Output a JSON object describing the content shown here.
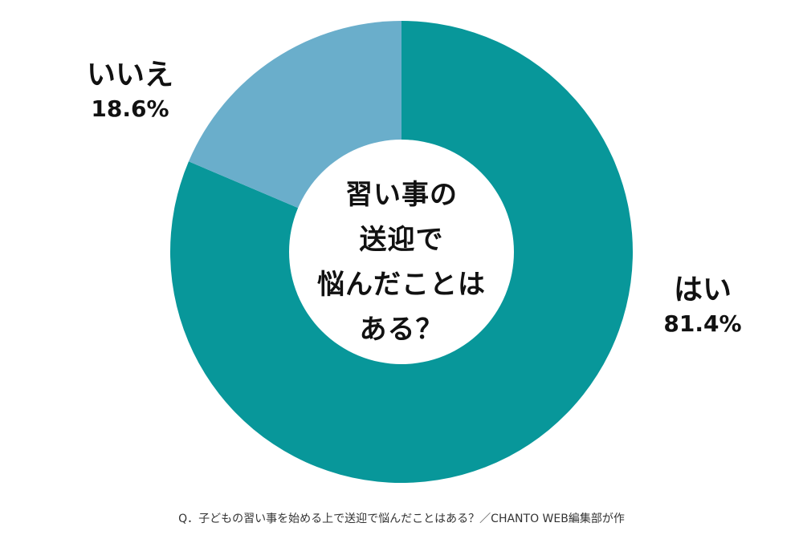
{
  "chart_data": {
    "type": "pie",
    "variant": "donut",
    "center_title": [
      "習い事の",
      "送迎で",
      "悩んだことは",
      "ある？"
    ],
    "slices": [
      {
        "label": "はい",
        "value": 81.4,
        "display": "81.4%",
        "color": "#08979a"
      },
      {
        "label": "いいえ",
        "value": 18.6,
        "display": "18.6%",
        "color": "#6aaecb"
      }
    ],
    "start_angle": "12 o'clock",
    "direction": "clockwise"
  },
  "footnote": "Q．子どもの習い事を始める上で送迎で悩んだことはある？／CHANTO WEB編集部が作"
}
